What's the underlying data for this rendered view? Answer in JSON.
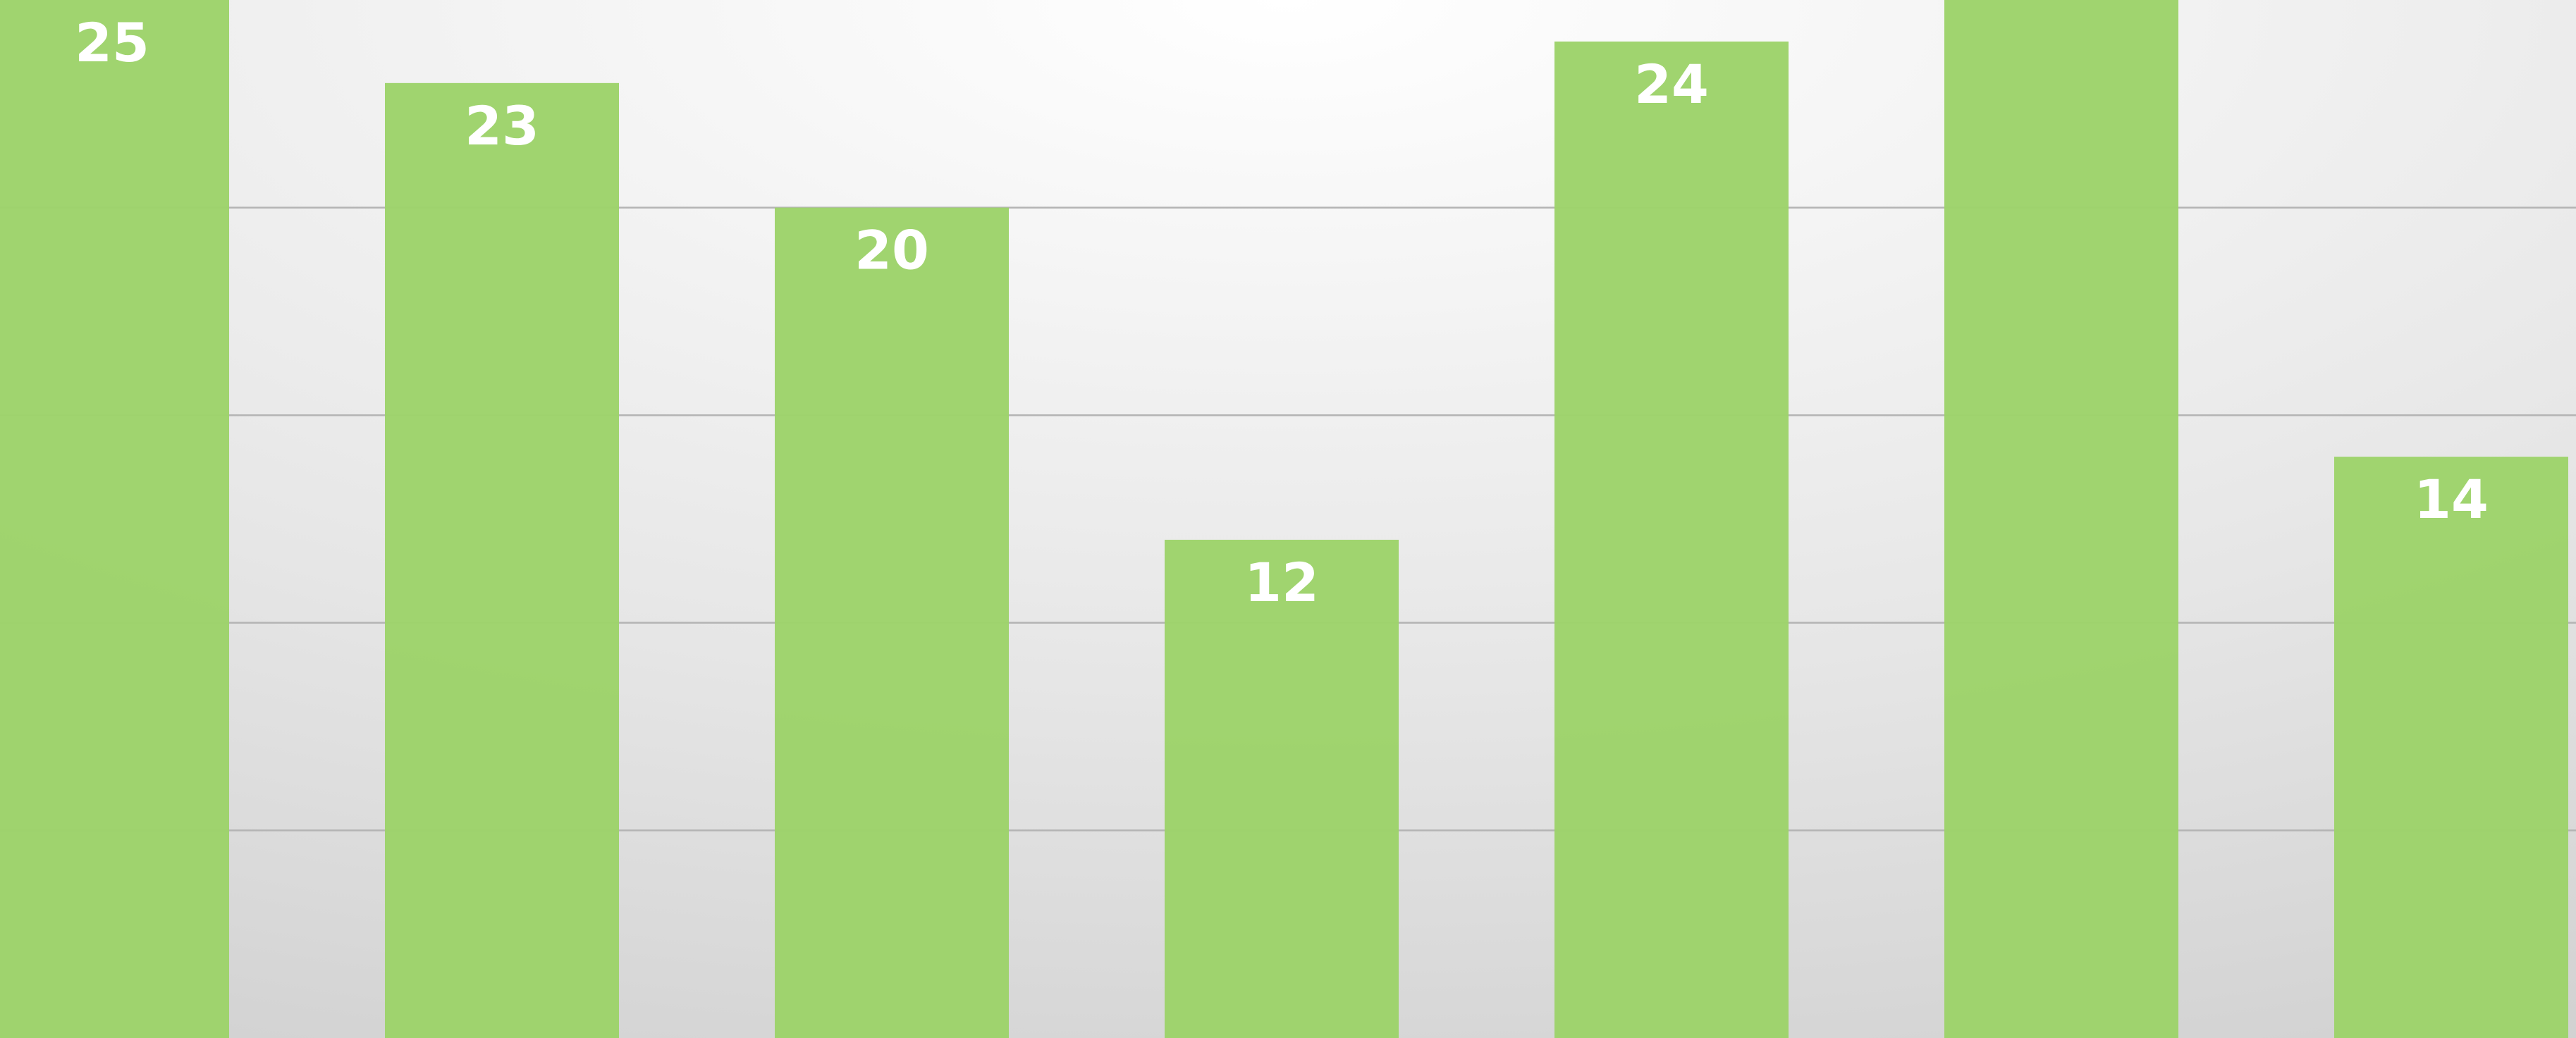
{
  "chart_data": {
    "type": "bar",
    "values": [
      25,
      23,
      20,
      12,
      24,
      27,
      14
    ],
    "color": "#9dd36a",
    "ylim": [
      0,
      25
    ],
    "yticks": [
      5,
      10,
      15,
      20
    ],
    "grid": true
  }
}
